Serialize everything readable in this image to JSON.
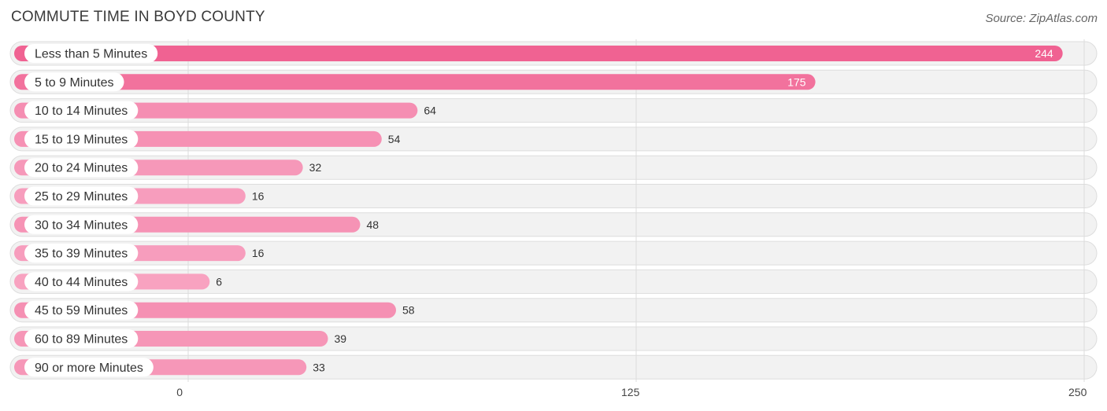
{
  "chart_data": {
    "type": "bar",
    "orientation": "horizontal",
    "title": "COMMUTE TIME IN BOYD COUNTY",
    "source": "Source: ZipAtlas.com",
    "categories": [
      "Less than 5 Minutes",
      "5 to 9 Minutes",
      "10 to 14 Minutes",
      "15 to 19 Minutes",
      "20 to 24 Minutes",
      "25 to 29 Minutes",
      "30 to 34 Minutes",
      "35 to 39 Minutes",
      "40 to 44 Minutes",
      "45 to 59 Minutes",
      "60 to 89 Minutes",
      "90 or more Minutes"
    ],
    "values": [
      244,
      175,
      64,
      54,
      32,
      16,
      48,
      16,
      6,
      58,
      39,
      33
    ],
    "xlim": [
      0,
      250
    ],
    "xticks": [
      0,
      125,
      250
    ],
    "xlabel": "",
    "ylabel": "",
    "colors": {
      "high": "#f06292",
      "low": "#f8a5c2"
    }
  }
}
